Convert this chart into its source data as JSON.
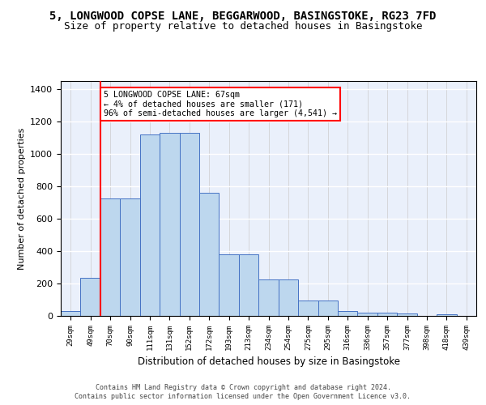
{
  "title_line1": "5, LONGWOOD COPSE LANE, BEGGARWOOD, BASINGSTOKE, RG23 7FD",
  "title_line2": "Size of property relative to detached houses in Basingstoke",
  "xlabel": "Distribution of detached houses by size in Basingstoke",
  "ylabel": "Number of detached properties",
  "categories": [
    "29sqm",
    "49sqm",
    "70sqm",
    "90sqm",
    "111sqm",
    "131sqm",
    "152sqm",
    "172sqm",
    "193sqm",
    "213sqm",
    "234sqm",
    "254sqm",
    "275sqm",
    "295sqm",
    "316sqm",
    "336sqm",
    "357sqm",
    "377sqm",
    "398sqm",
    "418sqm",
    "439sqm"
  ],
  "bar_heights": [
    28,
    236,
    726,
    726,
    1118,
    1130,
    1130,
    760,
    380,
    380,
    224,
    224,
    95,
    95,
    28,
    22,
    22,
    15,
    0,
    10,
    0
  ],
  "bar_color": "#bdd7ee",
  "bar_edge_color": "#4472c4",
  "vline_color": "red",
  "vline_x": 1.5,
  "annotation_text": "5 LONGWOOD COPSE LANE: 67sqm\n← 4% of detached houses are smaller (171)\n96% of semi-detached houses are larger (4,541) →",
  "annotation_box_color": "white",
  "annotation_box_edge": "red",
  "ylim": [
    0,
    1450
  ],
  "yticks": [
    0,
    200,
    400,
    600,
    800,
    1000,
    1200,
    1400
  ],
  "background_color": "#eaf0fb",
  "footer_line1": "Contains HM Land Registry data © Crown copyright and database right 2024.",
  "footer_line2": "Contains public sector information licensed under the Open Government Licence v3.0.",
  "title_fontsize": 10,
  "subtitle_fontsize": 9,
  "bar_width": 1.0,
  "fig_width": 6.0,
  "fig_height": 5.0,
  "fig_dpi": 100
}
